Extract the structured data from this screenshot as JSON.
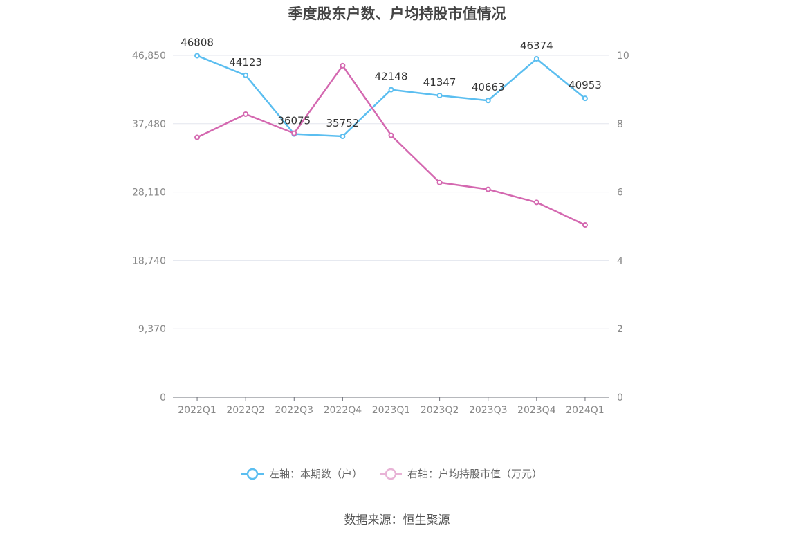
{
  "chart_data": {
    "type": "line",
    "title": "季度股东户数、户均持股市值情况",
    "categories": [
      "2022Q1",
      "2022Q2",
      "2022Q3",
      "2022Q4",
      "2023Q1",
      "2023Q2",
      "2023Q3",
      "2023Q4",
      "2024Q1"
    ],
    "series": [
      {
        "name": "左轴：本期数（户）",
        "axis": "left",
        "color": "#5bbef0",
        "values": [
          46808,
          44123,
          36075,
          35752,
          42148,
          41347,
          40663,
          46374,
          40953
        ],
        "data_labels": [
          "46808",
          "44123",
          "36075",
          "35752",
          "42148",
          "41347",
          "40663",
          "46374",
          "40953"
        ]
      },
      {
        "name": "右轴：户均持股市值（万元）",
        "axis": "right",
        "color": "#d468b0",
        "values": [
          7.6,
          8.28,
          7.72,
          9.7,
          7.66,
          6.28,
          6.08,
          5.7,
          5.04
        ]
      }
    ],
    "y_left": {
      "min": 0,
      "max": 46850,
      "ticks": [
        0,
        9370,
        18740,
        28110,
        37480,
        46850
      ],
      "tick_labels": [
        "0",
        "9,370",
        "18,740",
        "28,110",
        "37,480",
        "46,850"
      ]
    },
    "y_right": {
      "min": 0,
      "max": 10,
      "ticks": [
        0,
        2,
        4,
        6,
        8,
        10
      ],
      "tick_labels": [
        "0",
        "2",
        "4",
        "6",
        "8",
        "10"
      ]
    },
    "grid": true,
    "legend_position": "bottom"
  },
  "source": "数据来源：恒生聚源"
}
